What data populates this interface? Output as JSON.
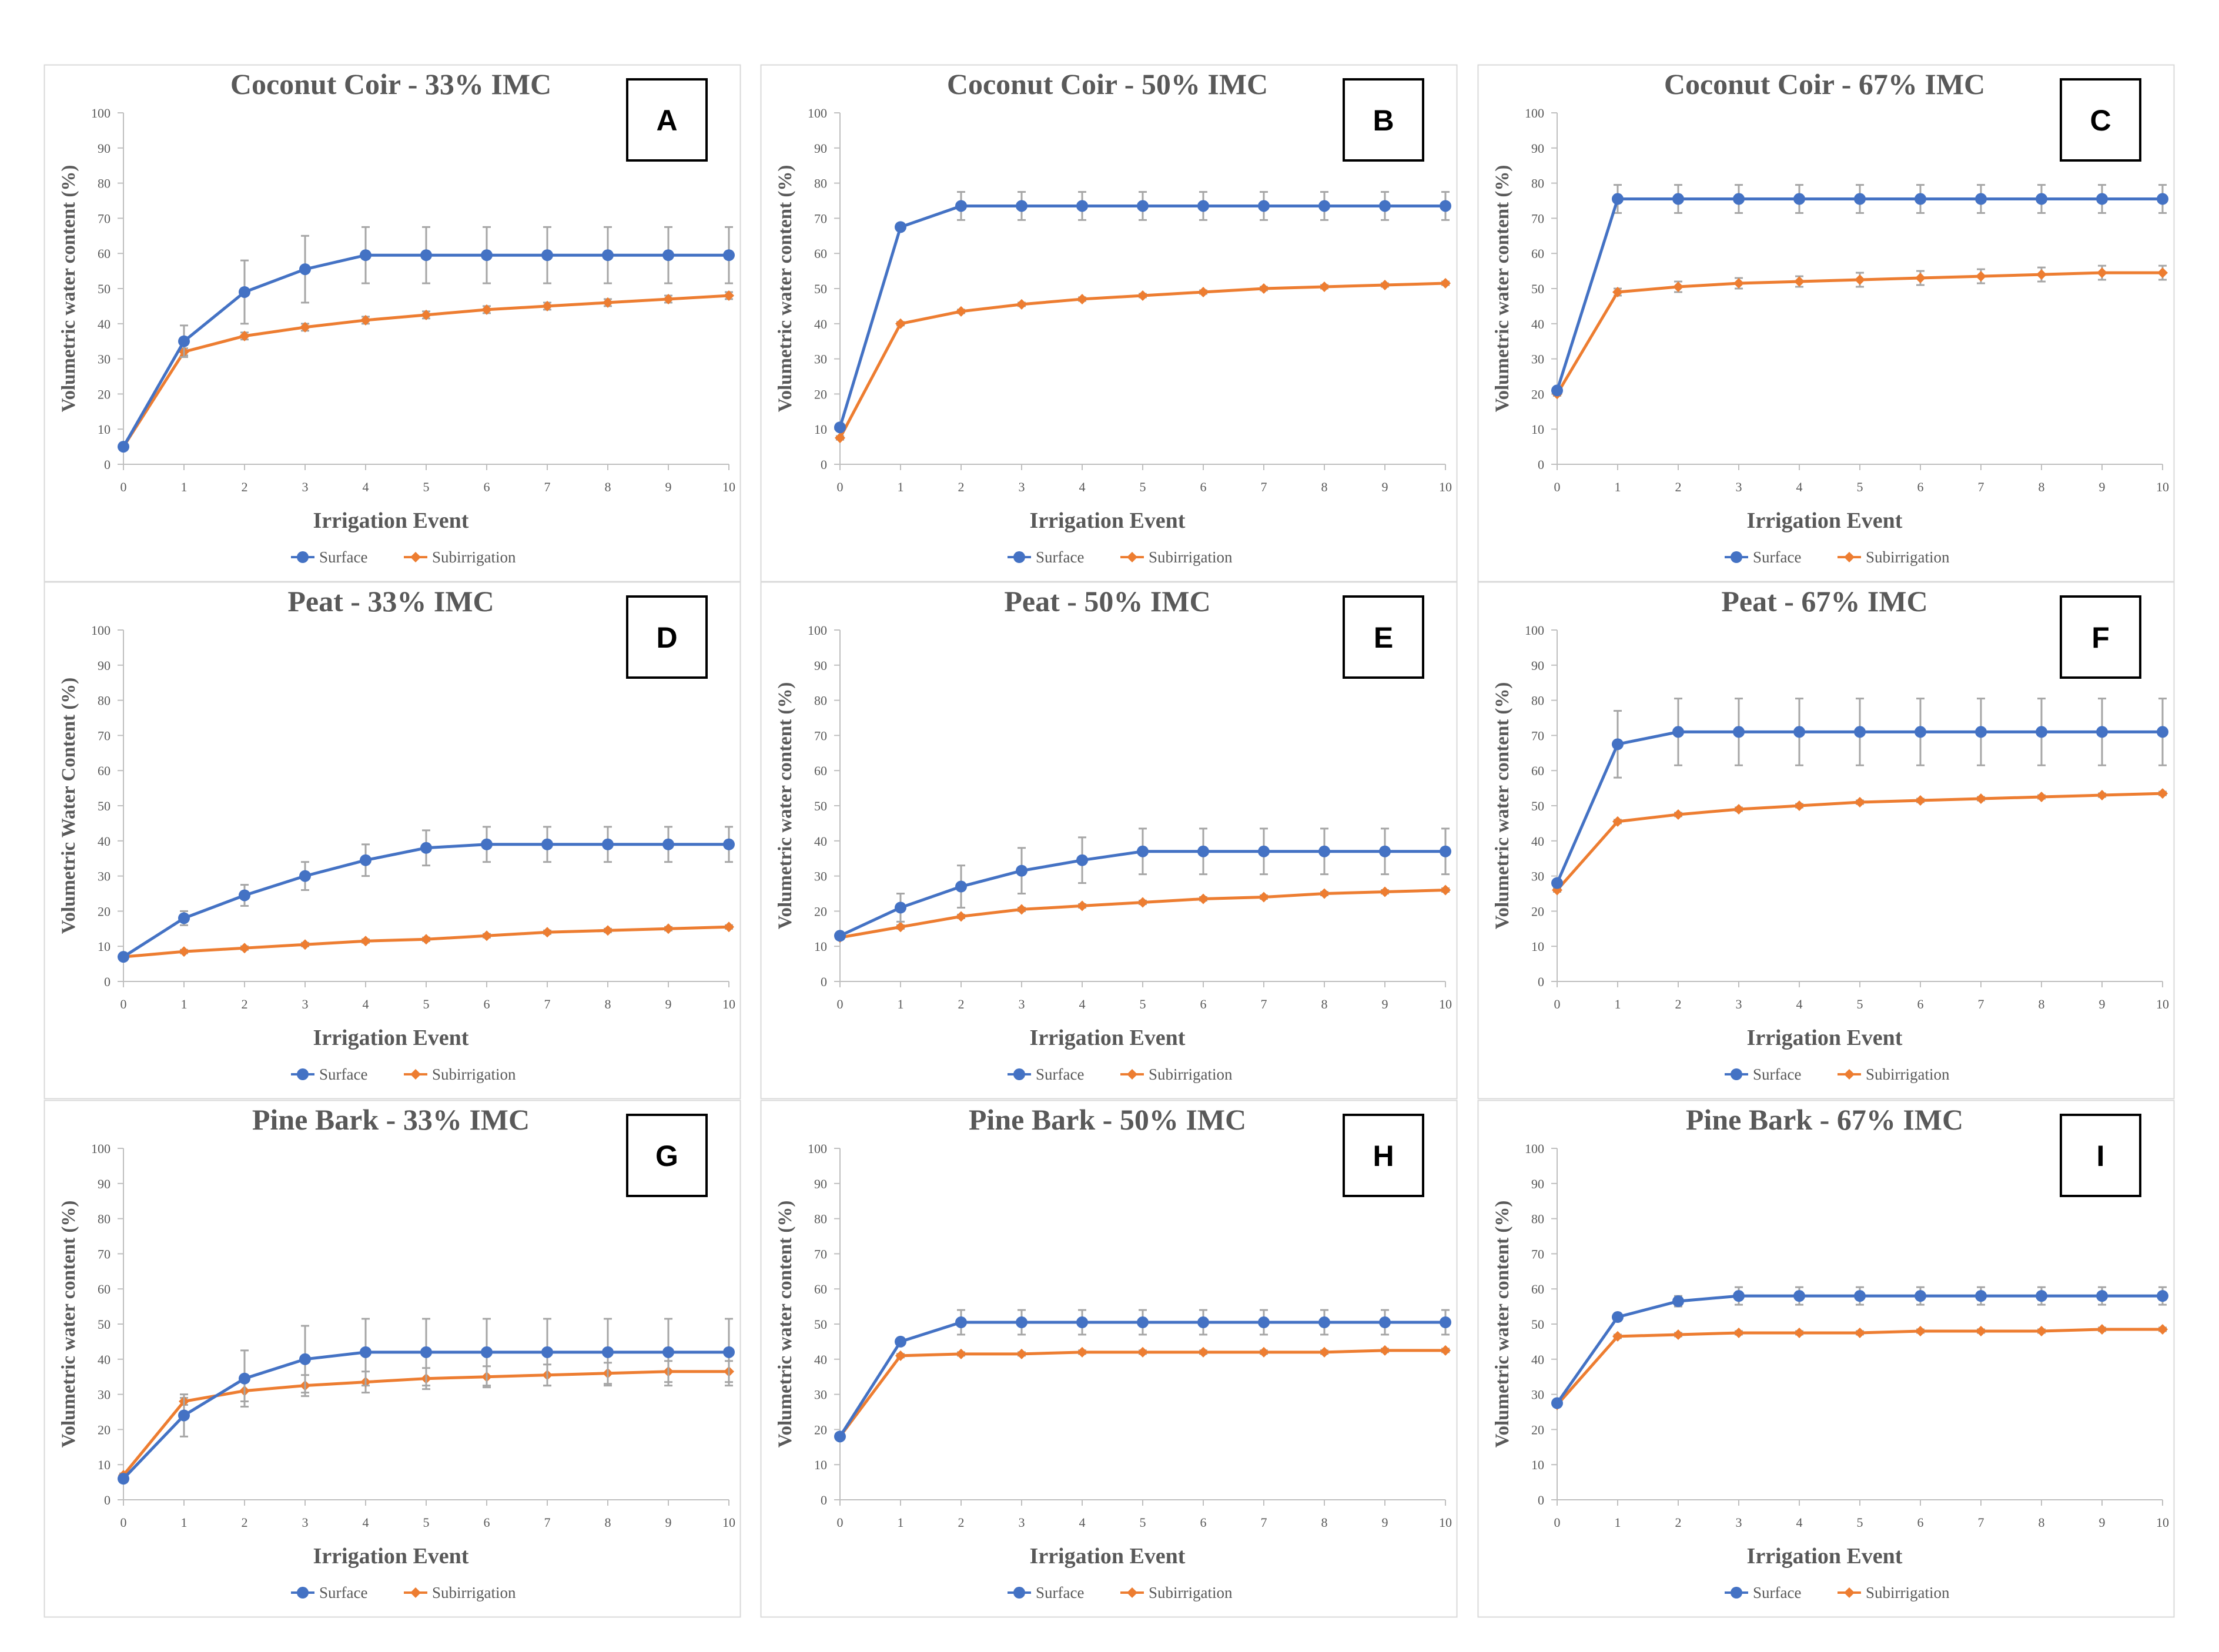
{
  "figure": {
    "legend": {
      "surface": "Surface",
      "subirrigation": "Subirrigation"
    },
    "colors": {
      "surface": "#4472c4",
      "subirrigation": "#ed7d31",
      "panel_border": "#d9d9d9",
      "axis": "#bfbfbf"
    }
  },
  "chart_data": [
    {
      "type": "line",
      "panel_letter": "A",
      "title": "Coconut Coir - 33% IMC",
      "xlabel": "Irrigation Event",
      "ylabel": "Volumetric water content (%)",
      "xlim": [
        0,
        10
      ],
      "ylim": [
        0,
        100
      ],
      "x": [
        0,
        1,
        2,
        3,
        4,
        5,
        6,
        7,
        8,
        9,
        10
      ],
      "xticks": [
        "0",
        "1",
        "2",
        "3",
        "4",
        "5",
        "6",
        "7",
        "8",
        "9",
        "10"
      ],
      "yticks": [
        "0",
        "10",
        "20",
        "30",
        "40",
        "50",
        "60",
        "70",
        "80",
        "90",
        "100"
      ],
      "series": [
        {
          "name": "Surface",
          "values": [
            5,
            35,
            49,
            55.5,
            59.5,
            59.5,
            59.5,
            59.5,
            59.5,
            59.5,
            59.5
          ],
          "errors": [
            1,
            4.5,
            9,
            9.5,
            8,
            8,
            8,
            8,
            8,
            8,
            8
          ]
        },
        {
          "name": "Subirrigation",
          "values": [
            5,
            32,
            36.5,
            39,
            41,
            42.5,
            44,
            45,
            46,
            47,
            48
          ],
          "errors": [
            0.5,
            1,
            1,
            1,
            1,
            1,
            1,
            1,
            1,
            1,
            1
          ]
        }
      ]
    },
    {
      "type": "line",
      "panel_letter": "B",
      "title": "Coconut Coir - 50% IMC",
      "xlabel": "Irrigation Event",
      "ylabel": "Volumetric water content (%)",
      "xlim": [
        0,
        10
      ],
      "ylim": [
        0,
        100
      ],
      "x": [
        0,
        1,
        2,
        3,
        4,
        5,
        6,
        7,
        8,
        9,
        10
      ],
      "xticks": [
        "0",
        "1",
        "2",
        "3",
        "4",
        "5",
        "6",
        "7",
        "8",
        "9",
        "10"
      ],
      "yticks": [
        "0",
        "10",
        "20",
        "30",
        "40",
        "50",
        "60",
        "70",
        "80",
        "90",
        "100"
      ],
      "series": [
        {
          "name": "Surface",
          "values": [
            10.5,
            67.5,
            73.5,
            73.5,
            73.5,
            73.5,
            73.5,
            73.5,
            73.5,
            73.5,
            73.5
          ],
          "errors": [
            1,
            1,
            4,
            4,
            4,
            4,
            4,
            4,
            4,
            4,
            4
          ]
        },
        {
          "name": "Subirrigation",
          "values": [
            7.5,
            40,
            43.5,
            45.5,
            47,
            48,
            49,
            50,
            50.5,
            51,
            51.5
          ],
          "errors": [
            0.5,
            0.5,
            0.5,
            0.5,
            0.5,
            0.5,
            0.5,
            0.5,
            0.5,
            0.5,
            0.5
          ]
        }
      ]
    },
    {
      "type": "line",
      "panel_letter": "C",
      "title": "Coconut Coir - 67% IMC",
      "xlabel": "Irrigation Event",
      "ylabel": "Volumetric water content (%)",
      "xlim": [
        0,
        10
      ],
      "ylim": [
        0,
        100
      ],
      "x": [
        0,
        1,
        2,
        3,
        4,
        5,
        6,
        7,
        8,
        9,
        10
      ],
      "xticks": [
        "0",
        "1",
        "2",
        "3",
        "4",
        "5",
        "6",
        "7",
        "8",
        "9",
        "10"
      ],
      "yticks": [
        "0",
        "10",
        "20",
        "30",
        "40",
        "50",
        "60",
        "70",
        "80",
        "90",
        "100"
      ],
      "series": [
        {
          "name": "Surface",
          "values": [
            21,
            75.5,
            75.5,
            75.5,
            75.5,
            75.5,
            75.5,
            75.5,
            75.5,
            75.5,
            75.5
          ],
          "errors": [
            1,
            4,
            4,
            4,
            4,
            4,
            4,
            4,
            4,
            4,
            4
          ]
        },
        {
          "name": "Subirrigation",
          "values": [
            20,
            49,
            50.5,
            51.5,
            52,
            52.5,
            53,
            53.5,
            54,
            54.5,
            54.5
          ],
          "errors": [
            0.5,
            1,
            1.5,
            1.5,
            1.5,
            2,
            2,
            2,
            2,
            2,
            2
          ]
        }
      ]
    },
    {
      "type": "line",
      "panel_letter": "D",
      "title": "Peat - 33% IMC",
      "xlabel": "Irrigation Event",
      "ylabel": "Volumetric Water Content (%)",
      "xlim": [
        0,
        10
      ],
      "ylim": [
        0,
        100
      ],
      "x": [
        0,
        1,
        2,
        3,
        4,
        5,
        6,
        7,
        8,
        9,
        10
      ],
      "xticks": [
        "0",
        "1",
        "2",
        "3",
        "4",
        "5",
        "6",
        "7",
        "8",
        "9",
        "10"
      ],
      "yticks": [
        "0",
        "10",
        "20",
        "30",
        "40",
        "50",
        "60",
        "70",
        "80",
        "90",
        "100"
      ],
      "series": [
        {
          "name": "Surface",
          "values": [
            7,
            18,
            24.5,
            30,
            34.5,
            38,
            39,
            39,
            39,
            39,
            39
          ],
          "errors": [
            0.5,
            2,
            3,
            4,
            4.5,
            5,
            5,
            5,
            5,
            5,
            5
          ]
        },
        {
          "name": "Subirrigation",
          "values": [
            7,
            8.5,
            9.5,
            10.5,
            11.5,
            12,
            13,
            14,
            14.5,
            15,
            15.5
          ],
          "errors": [
            0.5,
            0.5,
            0.5,
            0.5,
            0.5,
            0.5,
            0.5,
            0.5,
            0.5,
            0.5,
            0.5
          ]
        }
      ]
    },
    {
      "type": "line",
      "panel_letter": "E",
      "title": "Peat - 50% IMC",
      "xlabel": "Irrigation Event",
      "ylabel": "Volumetric water content (%)",
      "xlim": [
        0,
        10
      ],
      "ylim": [
        0,
        100
      ],
      "x": [
        0,
        1,
        2,
        3,
        4,
        5,
        6,
        7,
        8,
        9,
        10
      ],
      "xticks": [
        "0",
        "1",
        "2",
        "3",
        "4",
        "5",
        "6",
        "7",
        "8",
        "9",
        "10"
      ],
      "yticks": [
        "0",
        "10",
        "20",
        "30",
        "40",
        "50",
        "60",
        "70",
        "80",
        "90",
        "100"
      ],
      "series": [
        {
          "name": "Surface",
          "values": [
            13,
            21,
            27,
            31.5,
            34.5,
            37,
            37,
            37,
            37,
            37,
            37
          ],
          "errors": [
            0.5,
            4,
            6,
            6.5,
            6.5,
            6.5,
            6.5,
            6.5,
            6.5,
            6.5,
            6.5
          ]
        },
        {
          "name": "Subirrigation",
          "values": [
            12.5,
            15.5,
            18.5,
            20.5,
            21.5,
            22.5,
            23.5,
            24,
            25,
            25.5,
            26
          ],
          "errors": [
            0.5,
            0.5,
            0.5,
            0.5,
            0.5,
            0.5,
            0.5,
            0.5,
            0.5,
            0.5,
            0.5
          ]
        }
      ]
    },
    {
      "type": "line",
      "panel_letter": "F",
      "title": "Peat - 67% IMC",
      "xlabel": "Irrigation Event",
      "ylabel": "Volumetric water content (%)",
      "xlim": [
        0,
        10
      ],
      "ylim": [
        0,
        100
      ],
      "x": [
        0,
        1,
        2,
        3,
        4,
        5,
        6,
        7,
        8,
        9,
        10
      ],
      "xticks": [
        "0",
        "1",
        "2",
        "3",
        "4",
        "5",
        "6",
        "7",
        "8",
        "9",
        "10"
      ],
      "yticks": [
        "0",
        "10",
        "20",
        "30",
        "40",
        "50",
        "60",
        "70",
        "80",
        "90",
        "100"
      ],
      "series": [
        {
          "name": "Surface",
          "values": [
            28,
            67.5,
            71,
            71,
            71,
            71,
            71,
            71,
            71,
            71,
            71
          ],
          "errors": [
            1,
            9.5,
            9.5,
            9.5,
            9.5,
            9.5,
            9.5,
            9.5,
            9.5,
            9.5,
            9.5
          ]
        },
        {
          "name": "Subirrigation",
          "values": [
            26,
            45.5,
            47.5,
            49,
            50,
            51,
            51.5,
            52,
            52.5,
            53,
            53.5
          ],
          "errors": [
            0.5,
            0.5,
            0.5,
            0.5,
            0.5,
            0.5,
            0.5,
            0.5,
            0.5,
            0.5,
            0.5
          ]
        }
      ]
    },
    {
      "type": "line",
      "panel_letter": "G",
      "title": "Pine Bark - 33% IMC",
      "xlabel": "Irrigation Event",
      "ylabel": "Volumetric water content (%)",
      "xlim": [
        0,
        10
      ],
      "ylim": [
        0,
        100
      ],
      "x": [
        0,
        1,
        2,
        3,
        4,
        5,
        6,
        7,
        8,
        9,
        10
      ],
      "xticks": [
        "0",
        "1",
        "2",
        "3",
        "4",
        "5",
        "6",
        "7",
        "8",
        "9",
        "10"
      ],
      "yticks": [
        "0",
        "10",
        "20",
        "30",
        "40",
        "50",
        "60",
        "70",
        "80",
        "90",
        "100"
      ],
      "series": [
        {
          "name": "Surface",
          "values": [
            6,
            24,
            34.5,
            40,
            42,
            42,
            42,
            42,
            42,
            42,
            42
          ],
          "errors": [
            1,
            6,
            8,
            9.5,
            9.5,
            9.5,
            9.5,
            9.5,
            9.5,
            9.5,
            9.5
          ]
        },
        {
          "name": "Subirrigation",
          "values": [
            7,
            28,
            31,
            32.5,
            33.5,
            34.5,
            35,
            35.5,
            36,
            36.5,
            36.5
          ],
          "errors": [
            0.5,
            1,
            3,
            3,
            3,
            3,
            3,
            3,
            3,
            3,
            3
          ]
        }
      ]
    },
    {
      "type": "line",
      "panel_letter": "H",
      "title": "Pine Bark - 50% IMC",
      "xlabel": "Irrigation Event",
      "ylabel": "Volumetric water content (%)",
      "xlim": [
        0,
        10
      ],
      "ylim": [
        0,
        100
      ],
      "x": [
        0,
        1,
        2,
        3,
        4,
        5,
        6,
        7,
        8,
        9,
        10
      ],
      "xticks": [
        "0",
        "1",
        "2",
        "3",
        "4",
        "5",
        "6",
        "7",
        "8",
        "9",
        "10"
      ],
      "yticks": [
        "0",
        "10",
        "20",
        "30",
        "40",
        "50",
        "60",
        "70",
        "80",
        "90",
        "100"
      ],
      "series": [
        {
          "name": "Surface",
          "values": [
            18,
            45,
            50.5,
            50.5,
            50.5,
            50.5,
            50.5,
            50.5,
            50.5,
            50.5,
            50.5
          ],
          "errors": [
            0.5,
            1,
            3.5,
            3.5,
            3.5,
            3.5,
            3.5,
            3.5,
            3.5,
            3.5,
            3.5
          ]
        },
        {
          "name": "Subirrigation",
          "values": [
            18,
            41,
            41.5,
            41.5,
            42,
            42,
            42,
            42,
            42,
            42.5,
            42.5
          ],
          "errors": [
            0.5,
            0.5,
            0.5,
            0.5,
            0.5,
            0.5,
            0.5,
            0.5,
            0.5,
            0.5,
            0.5
          ]
        }
      ]
    },
    {
      "type": "line",
      "panel_letter": "I",
      "title": "Pine Bark - 67% IMC",
      "xlabel": "Irrigation Event",
      "ylabel": "Volumetric water content (%)",
      "xlim": [
        0,
        10
      ],
      "ylim": [
        0,
        100
      ],
      "x": [
        0,
        1,
        2,
        3,
        4,
        5,
        6,
        7,
        8,
        9,
        10
      ],
      "xticks": [
        "0",
        "1",
        "2",
        "3",
        "4",
        "5",
        "6",
        "7",
        "8",
        "9",
        "10"
      ],
      "yticks": [
        "0",
        "10",
        "20",
        "30",
        "40",
        "50",
        "60",
        "70",
        "80",
        "90",
        "100"
      ],
      "series": [
        {
          "name": "Surface",
          "values": [
            27.5,
            52,
            56.5,
            58,
            58,
            58,
            58,
            58,
            58,
            58,
            58
          ],
          "errors": [
            1,
            1,
            1.5,
            2.5,
            2.5,
            2.5,
            2.5,
            2.5,
            2.5,
            2.5,
            2.5
          ]
        },
        {
          "name": "Subirrigation",
          "values": [
            27,
            46.5,
            47,
            47.5,
            47.5,
            47.5,
            48,
            48,
            48,
            48.5,
            48.5
          ],
          "errors": [
            0.5,
            0.5,
            0.5,
            0.5,
            0.5,
            0.5,
            0.5,
            0.5,
            0.5,
            0.5,
            0.5
          ]
        }
      ]
    }
  ]
}
